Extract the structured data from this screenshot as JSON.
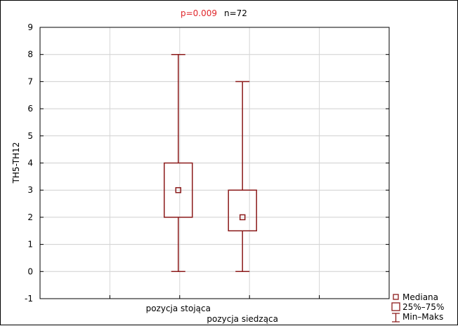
{
  "chart_data": {
    "type": "box",
    "annotations": {
      "p_value": "p=0.009",
      "n": "n=72",
      "p_color": "#e0262b"
    },
    "ylabel": "TH5-TH12",
    "xlabel": "",
    "ylim": [
      -1,
      9
    ],
    "y_ticks": [
      -1,
      0,
      1,
      2,
      3,
      4,
      5,
      6,
      7,
      8,
      9
    ],
    "grid": true,
    "categories": [
      "pozycja stojąca",
      "pozycja siedząca"
    ],
    "boxes": [
      {
        "label": "pozycja stojąca",
        "min": 0,
        "q1": 2,
        "median": 3,
        "q3": 4,
        "max": 8
      },
      {
        "label": "pozycja siedząca",
        "min": 0,
        "q1": 1.5,
        "median": 2,
        "q3": 3,
        "max": 7
      }
    ],
    "legend": {
      "position": "bottom-right",
      "items": [
        "Mediana",
        "25%–75%",
        "Min–Maks"
      ]
    },
    "series_color": "#8b1a1a"
  }
}
